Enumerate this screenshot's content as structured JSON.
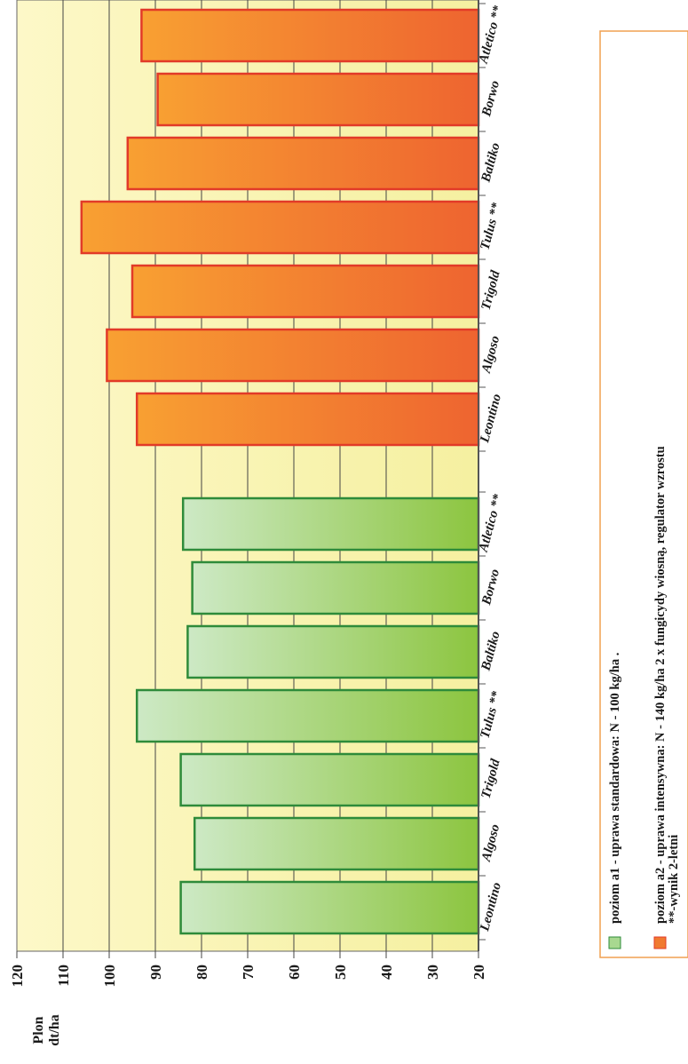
{
  "chart_data": {
    "type": "bar",
    "ylabel_line1": "Plon",
    "ylabel_line2": "dt/ha",
    "ylim": [
      20,
      120
    ],
    "yticks": [
      120,
      110,
      100,
      90,
      80,
      70,
      60,
      50,
      40,
      30,
      20
    ],
    "categories": [
      "Leontino",
      "Algoso",
      "Trigold",
      "Tulus **",
      "Baltiko",
      "Borwo",
      "Atletico **"
    ],
    "series": [
      {
        "name": "poziom a1 - uprawa standardowa:  N - 100 kg/ha .",
        "values": [
          84.5,
          81.5,
          84.5,
          94,
          83,
          82,
          84
        ]
      },
      {
        "name": "poziom a2 - uprawa   intensywna:  N - 140 kg/ha    2 x fungicydy wiosną, regulator wzrostu",
        "values": [
          94,
          100.5,
          95,
          106,
          96,
          89.5,
          93
        ]
      }
    ],
    "footnote": "**-wynik 2-letni",
    "colors": {
      "plot_background": "#fdf8c8",
      "a1_fill_light": "#cde9c5",
      "a1_fill_dark": "#8cc53f",
      "a1_stroke": "#2e8b3a",
      "a2_fill_light": "#f8a032",
      "a2_fill_dark": "#ee6430",
      "a2_stroke": "#e23a28",
      "legend_border": "#f0a050"
    },
    "grid": true,
    "orientation": "rotated-90"
  }
}
